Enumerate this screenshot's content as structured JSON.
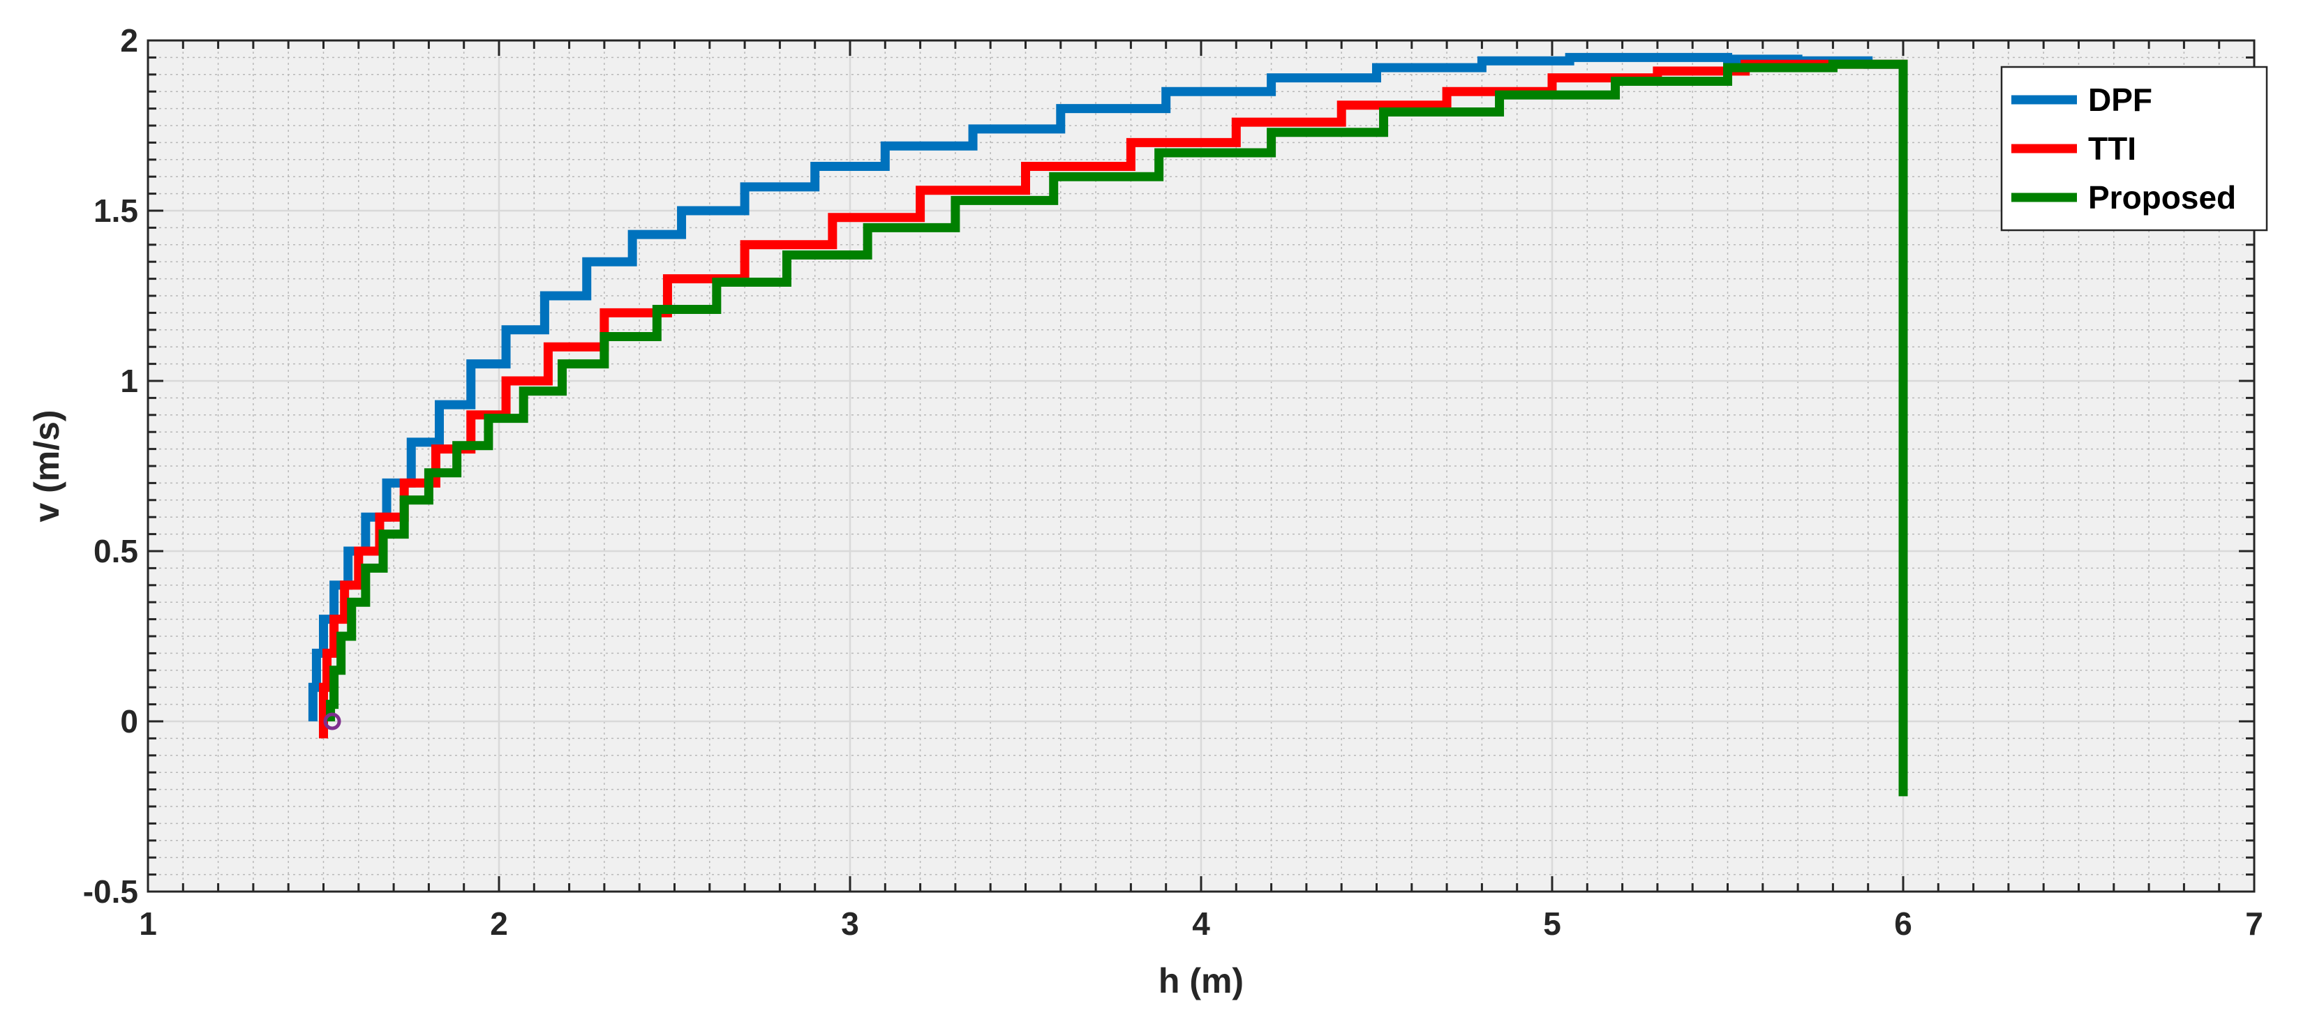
{
  "chart_data": {
    "type": "line",
    "title": "",
    "xlabel": "h (m)",
    "ylabel": "v (m/s)",
    "xlim": [
      1,
      7
    ],
    "ylim": [
      -0.5,
      2
    ],
    "xticks": [
      1,
      2,
      3,
      4,
      5,
      6,
      7
    ],
    "yticks": [
      -0.5,
      0,
      0.5,
      1,
      1.5,
      2
    ],
    "xtick_labels": [
      "1",
      "2",
      "3",
      "4",
      "5",
      "6",
      "7"
    ],
    "ytick_labels": [
      "-0.5",
      "0",
      "0.5",
      "1",
      "1.5",
      "2"
    ],
    "grid": "major and minor",
    "background_color": "#f0f0f0",
    "legend_position": "top-right",
    "series": [
      {
        "name": "DPF",
        "color": "#0072BD",
        "x": [
          1.47,
          1.48,
          1.5,
          1.53,
          1.57,
          1.62,
          1.68,
          1.75,
          1.83,
          1.92,
          2.02,
          2.13,
          2.25,
          2.38,
          2.52,
          2.7,
          2.9,
          3.1,
          3.35,
          3.6,
          3.9,
          4.2,
          4.5,
          4.8,
          5.05,
          5.3,
          5.5,
          5.7,
          5.9,
          6.0
        ],
        "y": [
          0.0,
          0.1,
          0.2,
          0.3,
          0.4,
          0.5,
          0.6,
          0.7,
          0.82,
          0.93,
          1.05,
          1.15,
          1.25,
          1.35,
          1.43,
          1.5,
          1.57,
          1.63,
          1.69,
          1.74,
          1.8,
          1.85,
          1.89,
          1.92,
          1.94,
          1.95,
          1.95,
          1.945,
          1.94,
          1.93
        ]
      },
      {
        "name": "TTI",
        "color": "#FF0000",
        "x": [
          1.5,
          1.5,
          1.51,
          1.53,
          1.56,
          1.6,
          1.66,
          1.73,
          1.82,
          1.92,
          2.02,
          2.14,
          2.3,
          2.48,
          2.7,
          2.95,
          3.2,
          3.5,
          3.8,
          4.1,
          4.4,
          4.7,
          5.0,
          5.3,
          5.55,
          5.8,
          6.0,
          6.0,
          6.0
        ],
        "y": [
          -0.05,
          0.0,
          0.1,
          0.2,
          0.3,
          0.4,
          0.5,
          0.6,
          0.7,
          0.8,
          0.9,
          1.0,
          1.1,
          1.2,
          1.3,
          1.4,
          1.48,
          1.56,
          1.63,
          1.7,
          1.76,
          1.81,
          1.85,
          1.89,
          1.91,
          1.93,
          1.93,
          1.5,
          1.13
        ]
      },
      {
        "name": "Proposed",
        "color": "#008000",
        "x": [
          1.52,
          1.53,
          1.55,
          1.58,
          1.62,
          1.67,
          1.73,
          1.8,
          1.88,
          1.97,
          2.07,
          2.18,
          2.3,
          2.45,
          2.62,
          2.82,
          3.05,
          3.3,
          3.58,
          3.88,
          4.2,
          4.52,
          4.85,
          5.18,
          5.5,
          5.8,
          6.0,
          6.0,
          6.0
        ],
        "y": [
          0.0,
          0.05,
          0.15,
          0.25,
          0.35,
          0.45,
          0.55,
          0.65,
          0.73,
          0.81,
          0.89,
          0.97,
          1.05,
          1.13,
          1.21,
          1.29,
          1.37,
          1.45,
          1.53,
          1.6,
          1.67,
          1.73,
          1.79,
          1.84,
          1.88,
          1.92,
          1.93,
          1.13,
          -0.22
        ]
      }
    ]
  }
}
